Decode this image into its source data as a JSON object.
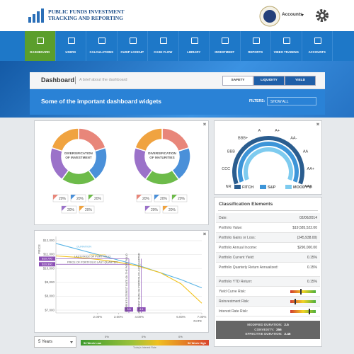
{
  "header": {
    "logo_title": "PUBLIC FUNDS INVESTMENT",
    "logo_subtitle": "TRACKING AND REPORTING",
    "account": "Accounts"
  },
  "nav": [
    "DASHBOARD",
    "USERS",
    "CALCULATIONS",
    "CUSIP LOOKUP",
    "CASH FLOW",
    "LIBRARY",
    "INVESTMENT",
    "REPORTS",
    "VIDEO TRAINING",
    "ACCOUNTS"
  ],
  "page": {
    "title": "Dashboard",
    "subtitle": "A brief about the dashboard",
    "toggles": [
      "SAFETY",
      "LIQUIDITY",
      "YIELD"
    ],
    "banner": "Some of the important dashboard widgets",
    "filter_label": "FILTERS:",
    "filter_value": "SHOW ALL"
  },
  "donuts": [
    {
      "label": "DIVERSIFICATION OF INVESTMENT",
      "values": [
        20,
        20,
        20,
        20,
        20
      ],
      "value_labels": [
        "20%",
        "20%",
        "20%",
        "20%",
        "20%"
      ],
      "colors": [
        "#e8867a",
        "#4a90d9",
        "#6dbb4a",
        "#9b72c9",
        "#f0a340"
      ]
    },
    {
      "label": "DIVERSIFICATION OF MATURITIES",
      "values": [
        20,
        20,
        20,
        20,
        20
      ],
      "value_labels": [
        "20%",
        "20%",
        "20%",
        "20%",
        "20%"
      ],
      "colors": [
        "#e8867a",
        "#4a90d9",
        "#6dbb4a",
        "#9b72c9",
        "#f0a340"
      ]
    }
  ],
  "gauge": {
    "labels": [
      "NR",
      "CCC",
      "BBB",
      "BBB+",
      "A",
      "A+",
      "AA-",
      "AA",
      "AA+",
      "AAA"
    ],
    "legend": [
      {
        "name": "FITCH",
        "color": "#2a5d8f"
      },
      {
        "name": "S&P",
        "color": "#3d95d8"
      },
      {
        "name": "MOODY'S",
        "color": "#7ecbef"
      }
    ]
  },
  "classification": {
    "title": "Classification Elements",
    "rows": [
      [
        "Date:",
        "02/06/2014"
      ],
      [
        "Portfolio Value:",
        "$19,585,522.00"
      ],
      [
        "Portfolio Gains or Loss:",
        "(245,938.00)"
      ],
      [
        "Portfolio Annual Income:",
        "$290,000.00"
      ],
      [
        "Portfolio Current Yield:",
        "0.15%"
      ],
      [
        "Portfolio Quarterly Return Annualized:",
        "0.15%"
      ],
      [
        "Portfolio YTD Return:",
        "0.15%"
      ]
    ],
    "risks": [
      "Yield Curve Risk:",
      "Reinvestment Risk:",
      "Interest Rate Risk:"
    ],
    "footer": [
      [
        "MODIFIED DURATION:",
        "2.5"
      ],
      [
        "CONVEXITY:",
        "356"
      ],
      [
        "EFFECTIVE DURATION:",
        "2.45"
      ]
    ]
  },
  "price_chart": {
    "type": "line",
    "y_label": "PRICE",
    "x_label": "RATE",
    "x": [
      0,
      1,
      2,
      3,
      4,
      5,
      6,
      7
    ],
    "series": [
      {
        "name": "DURATION",
        "color": "#5ab4e5",
        "values": [
          11800,
          11400,
          11000,
          10600,
          10200,
          9700,
          9200,
          8600
        ]
      },
      {
        "name": "CONVEXITY",
        "color": "#f2c21b",
        "values": [
          10900,
          10800,
          10650,
          10450,
          10150,
          9700,
          8900,
          7500
        ]
      }
    ],
    "xlim": [
      0,
      7
    ],
    "ylim": [
      6800,
      12300
    ],
    "yticks": [
      {
        "value": 7000,
        "label": "$7,000"
      },
      {
        "value": 8000,
        "label": "$8,000"
      },
      {
        "value": 9000,
        "label": "$9,000"
      },
      {
        "value": 10000,
        "label": "$10,000"
      },
      {
        "value": 11000,
        "label": "$11,000"
      },
      {
        "value": 12000,
        "label": "$12,000"
      }
    ],
    "xticks": [
      {
        "value": 2,
        "label": "2.00%"
      },
      {
        "value": 3,
        "label": "3.00%"
      },
      {
        "value": 4,
        "label": "4.00%"
      },
      {
        "value": 6,
        "label": "6.00%"
      },
      {
        "value": 7,
        "label": "7.00%"
      }
    ],
    "price_lines": [
      {
        "label": "LAST PRICE OF PORTFOLIO",
        "value": 10700,
        "value_label": "$10,700"
      },
      {
        "label": "PRICE OF PORTFOLIO LAST QUARTER",
        "value": 10300,
        "value_label": "$10,300"
      }
    ],
    "rate_lines": [
      {
        "label": "CURRENT INTEREST RATE ON THE PORTFOLIO",
        "value": 3.5,
        "value_label": "3.5"
      },
      {
        "label": "INTEREST RATE ON PORTFOLIO LAST QUARTER",
        "value": 4.1,
        "value_label": "4.1"
      }
    ],
    "color": "#8b4fb5"
  },
  "controls": {
    "period": "5 Years",
    "low": "52 Week Low",
    "high": "52 Week High",
    "marks": [
      "0%",
      "0%",
      "0%"
    ],
    "caption": "Today's Interest Rate"
  }
}
